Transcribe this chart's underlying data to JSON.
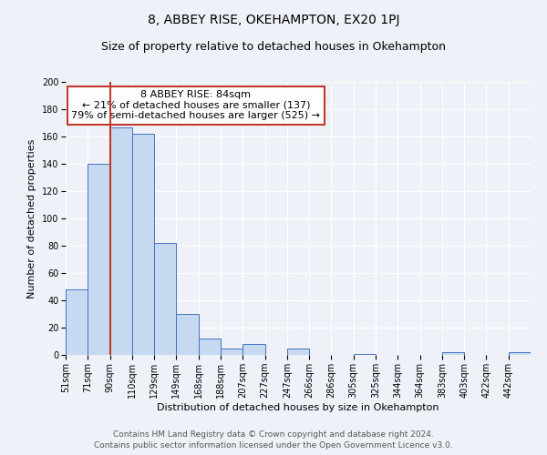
{
  "title": "8, ABBEY RISE, OKEHAMPTON, EX20 1PJ",
  "subtitle": "Size of property relative to detached houses in Okehampton",
  "xlabel": "Distribution of detached houses by size in Okehampton",
  "ylabel": "Number of detached properties",
  "footer_line1": "Contains HM Land Registry data © Crown copyright and database right 2024.",
  "footer_line2": "Contains public sector information licensed under the Open Government Licence v3.0.",
  "bin_labels": [
    "51sqm",
    "71sqm",
    "90sqm",
    "110sqm",
    "129sqm",
    "149sqm",
    "168sqm",
    "188sqm",
    "207sqm",
    "227sqm",
    "247sqm",
    "266sqm",
    "286sqm",
    "305sqm",
    "325sqm",
    "344sqm",
    "364sqm",
    "383sqm",
    "403sqm",
    "422sqm",
    "442sqm"
  ],
  "bar_heights": [
    48,
    140,
    167,
    162,
    82,
    30,
    12,
    5,
    8,
    0,
    5,
    0,
    0,
    1,
    0,
    0,
    0,
    2,
    0,
    0,
    2
  ],
  "bar_color": "#c6d9f0",
  "bar_edge_color": "#4472c4",
  "reference_line_x_label": "90sqm",
  "reference_line_color": "#c0392b",
  "annotation_title": "8 ABBEY RISE: 84sqm",
  "annotation_line1": "← 21% of detached houses are smaller (137)",
  "annotation_line2": "79% of semi-detached houses are larger (525) →",
  "annotation_box_edge_color": "#c0392b",
  "ylim": [
    0,
    200
  ],
  "yticks": [
    0,
    20,
    40,
    60,
    80,
    100,
    120,
    140,
    160,
    180,
    200
  ],
  "background_color": "#eef2f8",
  "grid_color": "#ffffff",
  "title_fontsize": 10,
  "subtitle_fontsize": 9,
  "axis_label_fontsize": 8,
  "tick_label_fontsize": 7,
  "annotation_fontsize": 8,
  "footer_fontsize": 6.5
}
